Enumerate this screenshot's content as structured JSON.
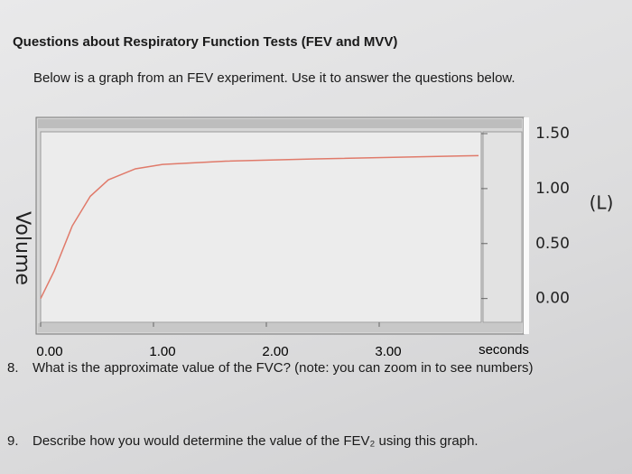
{
  "header": {
    "title": "Questions about Respiratory Function Tests (FEV and MVV)"
  },
  "intro": "Below is a graph from an FEV experiment. Use it to answer the questions below.",
  "chart_data": {
    "type": "line",
    "x_label": "seconds",
    "y_label": "Volume",
    "y_unit": "(L)",
    "x": [
      0,
      0.12,
      0.28,
      0.44,
      0.6,
      0.84,
      1.08,
      1.64,
      2.44,
      3.88
    ],
    "series": [
      {
        "color": "#e07a6a",
        "values": [
          0.0,
          0.25,
          0.66,
          0.93,
          1.08,
          1.18,
          1.22,
          1.25,
          1.27,
          1.3
        ]
      }
    ],
    "xlim": [
      0,
      3.9
    ],
    "ylim": [
      -0.2,
      1.5
    ],
    "xticks": [
      {
        "value": 0,
        "label": "0.00"
      },
      {
        "value": 1,
        "label": "1.00"
      },
      {
        "value": 2,
        "label": "2.00"
      },
      {
        "value": 3,
        "label": "3.00"
      }
    ],
    "yticks": [
      {
        "value": 1.5,
        "label": "1.50"
      },
      {
        "value": 1,
        "label": "1.00"
      },
      {
        "value": 0.5,
        "label": "0.50"
      },
      {
        "value": 0,
        "label": "0.00"
      }
    ],
    "grid": false
  },
  "questions": [
    {
      "number": "8.",
      "text": "What is the approximate value of the FVC? (note: you can zoom in to see numbers)"
    },
    {
      "number": "9.",
      "text": "Describe how you would determine the value of the FEV₂ using this graph."
    }
  ]
}
